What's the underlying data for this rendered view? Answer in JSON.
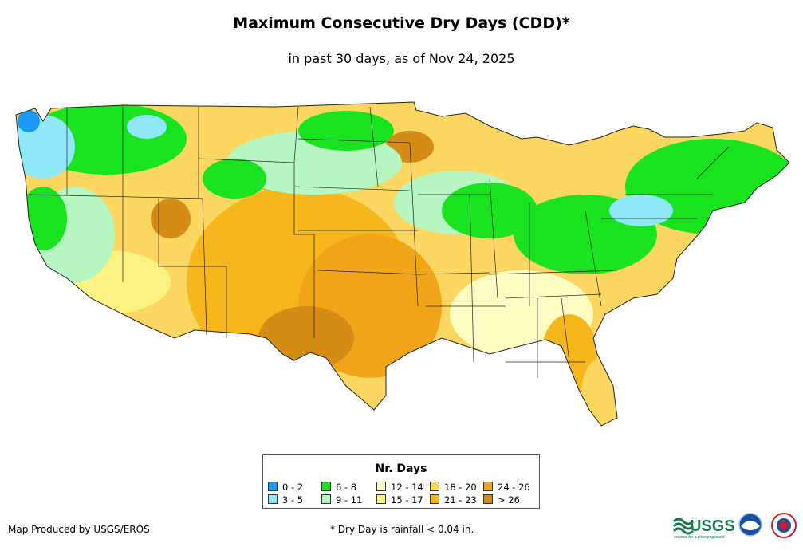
{
  "header": {
    "title": "Maximum Consecutive Dry Days (CDD)*",
    "subtitle": "in past 30 days, as of Nov 24, 2025"
  },
  "legend": {
    "title": "Nr. Days",
    "items": [
      {
        "label": "0 - 2",
        "color": "#1a9af5"
      },
      {
        "label": "3 - 5",
        "color": "#8ee8f8"
      },
      {
        "label": "6 - 8",
        "color": "#19e21f"
      },
      {
        "label": "9 - 11",
        "color": "#b6f6c0"
      },
      {
        "label": "12 - 14",
        "color": "#fdfdc3"
      },
      {
        "label": "15 - 17",
        "color": "#fbf282"
      },
      {
        "label": "18 - 20",
        "color": "#fbd660"
      },
      {
        "label": "21 - 23",
        "color": "#f6b71c"
      },
      {
        "label": "24 - 26",
        "color": "#f0a417"
      },
      {
        "label": "> 26",
        "color": "#d58c14"
      }
    ]
  },
  "footer": {
    "credit": "Map Produced by USGS/EROS",
    "note": "* Dry Day is rainfall < 0.04 in.",
    "usgs_logo_text": "USGS",
    "usgs_tagline": "science for a changing world"
  }
}
